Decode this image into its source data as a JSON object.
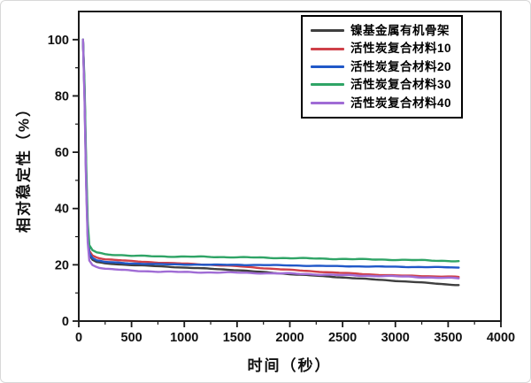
{
  "figure": {
    "background": "#ffffff",
    "axis_color": "#1a1a1a",
    "tick_label_color": "#111111"
  },
  "chart_data": {
    "type": "line",
    "title": "",
    "xlabel": "时间（秒）",
    "ylabel": "相对稳定性（%）",
    "xlim": [
      0,
      4000
    ],
    "ylim": [
      0,
      110
    ],
    "x_major_ticks": [
      0,
      500,
      1000,
      1500,
      2000,
      2500,
      3000,
      3500,
      4000
    ],
    "x_minor_step": 250,
    "y_major_ticks": [
      0,
      20,
      40,
      60,
      80,
      100
    ],
    "y_minor_step": 10,
    "grid": false,
    "legend_position": "inside-top-center",
    "series": [
      {
        "name": "镍基金属有机骨架",
        "color": "#3f3f3f",
        "points": [
          [
            40,
            100
          ],
          [
            55,
            80
          ],
          [
            70,
            50
          ],
          [
            85,
            30
          ],
          [
            100,
            23.5
          ],
          [
            130,
            21.8
          ],
          [
            170,
            21.0
          ],
          [
            250,
            20.5
          ],
          [
            500,
            19.9
          ],
          [
            750,
            19.5
          ],
          [
            1000,
            19.0
          ],
          [
            1250,
            18.6
          ],
          [
            1500,
            18.1
          ],
          [
            1750,
            17.4
          ],
          [
            2000,
            16.7
          ],
          [
            2250,
            16.1
          ],
          [
            2500,
            15.5
          ],
          [
            2750,
            14.9
          ],
          [
            3000,
            14.3
          ],
          [
            3250,
            13.7
          ],
          [
            3500,
            13.0
          ],
          [
            3600,
            12.8
          ]
        ]
      },
      {
        "name": "活性炭复合材料10",
        "color": "#cf4049",
        "points": [
          [
            40,
            100
          ],
          [
            55,
            82
          ],
          [
            70,
            53
          ],
          [
            85,
            32
          ],
          [
            100,
            25.0
          ],
          [
            130,
            23.3
          ],
          [
            170,
            22.6
          ],
          [
            250,
            22.0
          ],
          [
            500,
            21.3
          ],
          [
            750,
            20.8
          ],
          [
            1000,
            20.4
          ],
          [
            1250,
            20.0
          ],
          [
            1500,
            19.5
          ],
          [
            1750,
            18.8
          ],
          [
            2000,
            18.2
          ],
          [
            2250,
            17.6
          ],
          [
            2500,
            17.1
          ],
          [
            2750,
            16.6
          ],
          [
            3000,
            16.2
          ],
          [
            3250,
            16.0
          ],
          [
            3500,
            15.8
          ],
          [
            3600,
            15.7
          ]
        ]
      },
      {
        "name": "活性炭复合材料20",
        "color": "#2058c8",
        "points": [
          [
            40,
            100
          ],
          [
            55,
            81
          ],
          [
            70,
            52
          ],
          [
            85,
            31
          ],
          [
            100,
            24.2
          ],
          [
            130,
            22.4
          ],
          [
            170,
            21.6
          ],
          [
            250,
            21.0
          ],
          [
            500,
            20.5
          ],
          [
            750,
            20.2
          ],
          [
            1000,
            20.1
          ],
          [
            1250,
            20.0
          ],
          [
            1500,
            20.0
          ],
          [
            1750,
            19.9
          ],
          [
            2000,
            19.8
          ],
          [
            2250,
            19.6
          ],
          [
            2500,
            19.5
          ],
          [
            2750,
            19.4
          ],
          [
            3000,
            19.3
          ],
          [
            3250,
            19.2
          ],
          [
            3500,
            19.1
          ],
          [
            3600,
            19.0
          ]
        ]
      },
      {
        "name": "活性炭复合材料30",
        "color": "#2fa466",
        "points": [
          [
            40,
            100
          ],
          [
            55,
            84
          ],
          [
            70,
            56
          ],
          [
            85,
            35
          ],
          [
            100,
            27.0
          ],
          [
            130,
            25.2
          ],
          [
            170,
            24.4
          ],
          [
            250,
            23.8
          ],
          [
            500,
            23.2
          ],
          [
            750,
            23.0
          ],
          [
            1000,
            22.9
          ],
          [
            1250,
            22.8
          ],
          [
            1500,
            22.7
          ],
          [
            1750,
            22.5
          ],
          [
            2000,
            22.4
          ],
          [
            2250,
            22.2
          ],
          [
            2500,
            22.1
          ],
          [
            2750,
            21.9
          ],
          [
            3000,
            21.8
          ],
          [
            3250,
            21.6
          ],
          [
            3500,
            21.4
          ],
          [
            3600,
            21.3
          ]
        ]
      },
      {
        "name": "活性炭复合材料40",
        "color": "#a06cd5",
        "points": [
          [
            40,
            100
          ],
          [
            55,
            78
          ],
          [
            70,
            48
          ],
          [
            85,
            28
          ],
          [
            100,
            21.5
          ],
          [
            130,
            19.9
          ],
          [
            170,
            19.2
          ],
          [
            250,
            18.6
          ],
          [
            500,
            17.9
          ],
          [
            750,
            17.6
          ],
          [
            1000,
            17.4
          ],
          [
            1250,
            17.3
          ],
          [
            1500,
            17.2
          ],
          [
            1750,
            17.0
          ],
          [
            2000,
            16.9
          ],
          [
            2250,
            16.6
          ],
          [
            2500,
            16.3
          ],
          [
            2750,
            16.1
          ],
          [
            3000,
            15.9
          ],
          [
            3250,
            15.6
          ],
          [
            3500,
            15.3
          ],
          [
            3600,
            15.2
          ]
        ]
      }
    ]
  }
}
